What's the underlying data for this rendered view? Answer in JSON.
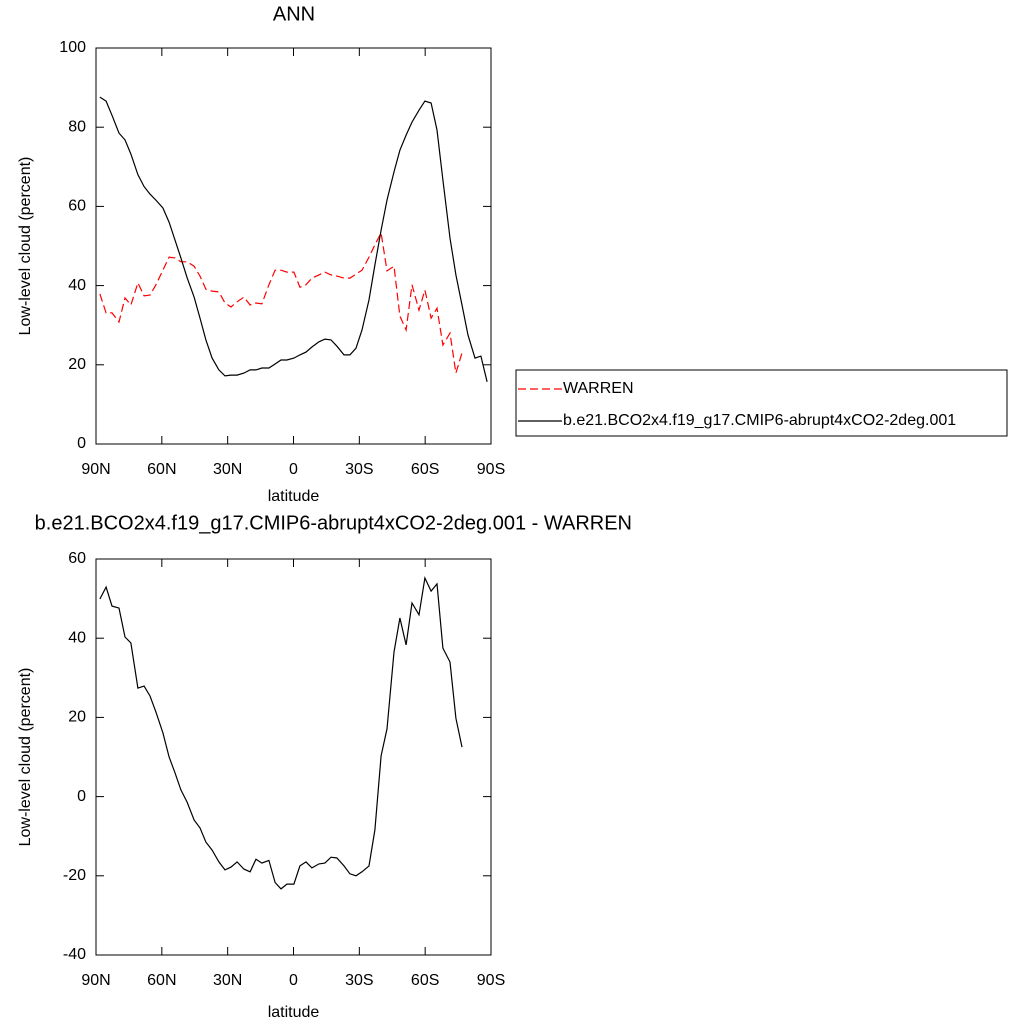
{
  "chart_data": [
    {
      "type": "line",
      "title": "ANN",
      "y_label": "Low-level cloud (percent)",
      "x_label": "latitude",
      "x": [
        88.2,
        85.4,
        82.7,
        79.5,
        76.8,
        74.1,
        70.9,
        68.1,
        65.4,
        62.7,
        59.5,
        56.7,
        54.0,
        51.3,
        48.5,
        45.3,
        42.6,
        39.9,
        37.1,
        34.0,
        31.2,
        28.5,
        25.7,
        22.6,
        19.8,
        17.1,
        14.4,
        11.2,
        8.4,
        5.7,
        3.0,
        -0.2,
        -2.9,
        -5.7,
        -8.4,
        -11.6,
        -14.3,
        -17.1,
        -19.8,
        -23.0,
        -25.7,
        -28.5,
        -31.2,
        -34.4,
        -37.1,
        -39.9,
        -42.6,
        -45.8,
        -48.5,
        -51.3,
        -54.0,
        -57.2,
        -59.9,
        -62.7,
        -65.4,
        -68.1,
        -71.3,
        -74.0,
        -76.8,
        -79.5,
        -82.7,
        -85.4,
        -88.2
      ],
      "series": [
        {
          "name": "WARREN",
          "color": "#ff0000",
          "line_style": "dashed",
          "values": [
            37.9,
            33.1,
            33.1,
            30.8,
            36.9,
            35.1,
            40.7,
            37.4,
            37.6,
            40.2,
            43.9,
            47.2,
            47,
            46,
            46,
            44.9,
            42.4,
            39.1,
            38.6,
            38.4,
            35.6,
            34.6,
            35.9,
            37.1,
            35.1,
            35.6,
            35.4,
            40.2,
            43.9,
            43.9,
            43.4,
            43.4,
            39.6,
            40.2,
            41.9,
            42.7,
            43.4,
            42.7,
            42.4,
            41.9,
            41.9,
            42.9,
            43.9,
            47.2,
            50.3,
            53.3,
            43.7,
            44.9,
            32.3,
            28.8,
            40.2,
            33.8,
            38.9,
            31.8,
            34.3,
            25,
            28,
            17.9,
            23,
            null,
            null,
            null,
            null
          ]
        },
        {
          "name": "b.e21.BCO2x4.f19_g17.CMIP6-abrupt4xCO2-2deg.001",
          "color": "#000000",
          "line_style": "solid",
          "values": [
            87.6,
            86.6,
            83,
            78.5,
            76.8,
            73.2,
            68,
            65,
            63.1,
            61.6,
            59.6,
            56,
            51.5,
            47,
            42,
            37.1,
            31.8,
            26.3,
            21.7,
            18.7,
            17.2,
            17.4,
            17.4,
            17.9,
            18.7,
            18.7,
            19.2,
            19.2,
            20.2,
            21.2,
            21.2,
            21.7,
            22.5,
            23.2,
            24.5,
            25.8,
            26.5,
            26.3,
            24.7,
            22.5,
            22.5,
            24.2,
            28.8,
            36.4,
            45.2,
            54,
            61.6,
            68.7,
            74.2,
            78,
            81.3,
            84.3,
            86.6,
            86.1,
            79.3,
            66.7,
            52,
            42.7,
            35.1,
            27.5,
            21.7,
            22.2,
            15.7
          ]
        }
      ],
      "xlim": [
        90,
        -90
      ],
      "xticks": [
        {
          "value": 90,
          "label": "90N"
        },
        {
          "value": 60,
          "label": "60N"
        },
        {
          "value": 30,
          "label": "30N"
        },
        0,
        {
          "value": -30,
          "label": "30S"
        },
        {
          "value": -60,
          "label": "60S"
        },
        {
          "value": -90,
          "label": "90S"
        }
      ],
      "ylim": [
        0,
        100
      ],
      "yticks": [
        0,
        20,
        40,
        60,
        80,
        100
      ]
    },
    {
      "type": "line",
      "title": "b.e21.BCO2x4.f19_g17.CMIP6-abrupt4xCO2-2deg.001 - WARREN",
      "y_label": "Low-level cloud (percent)",
      "x_label": "latitude",
      "x": [
        88.2,
        85.4,
        82.7,
        79.5,
        76.8,
        74.1,
        70.9,
        68.1,
        65.4,
        62.7,
        59.5,
        56.7,
        54.0,
        51.3,
        48.5,
        45.3,
        42.6,
        39.9,
        37.1,
        34.0,
        31.2,
        28.5,
        25.7,
        22.6,
        19.8,
        17.1,
        14.4,
        11.2,
        8.4,
        5.7,
        3.0,
        -0.2,
        -2.9,
        -5.7,
        -8.4,
        -11.6,
        -14.3,
        -17.1,
        -19.8,
        -23.0,
        -25.7,
        -28.5,
        -31.2,
        -34.4,
        -37.1,
        -39.9,
        -42.6,
        -45.8,
        -48.5,
        -51.3,
        -54.0,
        -57.2,
        -59.9,
        -62.7,
        -65.4,
        -68.1,
        -71.3,
        -74.0,
        -76.8
      ],
      "color": "#000000",
      "values": [
        49.9,
        52.9,
        48.1,
        47.6,
        40.3,
        38.8,
        27.4,
        27.9,
        25.4,
        21.4,
        16.1,
        10,
        6,
        1.7,
        -1.4,
        -5.9,
        -7.9,
        -11.5,
        -13.5,
        -16.5,
        -18.5,
        -17.8,
        -16.5,
        -18.3,
        -19,
        -15.8,
        -16.8,
        -16.1,
        -21.7,
        -23.3,
        -22.1,
        -22.1,
        -17.5,
        -16.5,
        -18,
        -17,
        -16.8,
        -15.3,
        -15.5,
        -17.5,
        -19.5,
        -20,
        -19,
        -17.5,
        -8.4,
        10.3,
        17.1,
        36.5,
        45.1,
        38.3,
        48.9,
        45.9,
        55.2,
        51.9,
        53.7,
        37.5,
        34,
        19.8,
        12.5
      ],
      "xlim": [
        90,
        -90
      ],
      "xticks": [
        {
          "value": 90,
          "label": "90N"
        },
        {
          "value": 60,
          "label": "60N"
        },
        {
          "value": 30,
          "label": "30N"
        },
        0,
        {
          "value": -30,
          "label": "30S"
        },
        {
          "value": -60,
          "label": "60S"
        },
        {
          "value": -90,
          "label": "90S"
        }
      ],
      "ylim": [
        -40,
        60
      ],
      "yticks": [
        -40,
        -20,
        0,
        20,
        40,
        60
      ]
    }
  ]
}
